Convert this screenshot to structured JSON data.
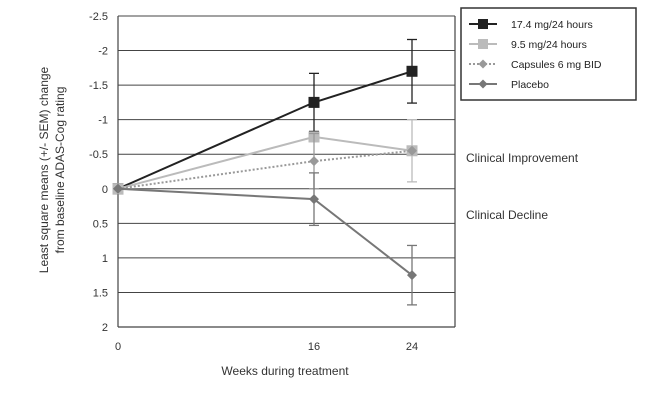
{
  "chart_data": {
    "type": "line",
    "x": [
      0,
      16,
      24
    ],
    "xlabel": "Weeks during treatment",
    "ylabel_lines": [
      "Least square means (+/- SEM) change",
      "from baseline ADAS-Cog rating"
    ],
    "yticks": [
      "-2.5",
      "-2",
      "-1.5",
      "-1",
      "-0.5",
      "0",
      "0.5",
      "1",
      "1.5",
      "2"
    ],
    "ylim": [
      2,
      -2.5
    ],
    "y_inverted": true,
    "grid": "horizontal",
    "legend_position": "top-right",
    "annotations": [
      "Clinical Improvement",
      "Clinical Decline"
    ],
    "series": [
      {
        "name": "17.4 mg/24 hours",
        "marker": "square",
        "color": "#222222",
        "dash": "solid",
        "values": [
          0,
          -1.25,
          -1.7
        ],
        "sem": [
          0,
          0.42,
          0.46
        ]
      },
      {
        "name": "9.5 mg/24 hours",
        "marker": "square",
        "color": "#bbbbbb",
        "dash": "solid",
        "values": [
          0,
          -0.75,
          -0.55
        ],
        "sem": [
          0,
          0,
          0.45
        ]
      },
      {
        "name": "Capsules 6 mg BID",
        "marker": "diamond",
        "color": "#999999",
        "dash": "dotted",
        "values": [
          0,
          -0.4,
          -0.55
        ],
        "sem": [
          0,
          0.4,
          0
        ]
      },
      {
        "name": "Placebo",
        "marker": "diamond",
        "color": "#777777",
        "dash": "solid",
        "values": [
          0,
          0.15,
          1.25
        ],
        "sem": [
          0,
          0.38,
          0.43
        ]
      }
    ]
  }
}
